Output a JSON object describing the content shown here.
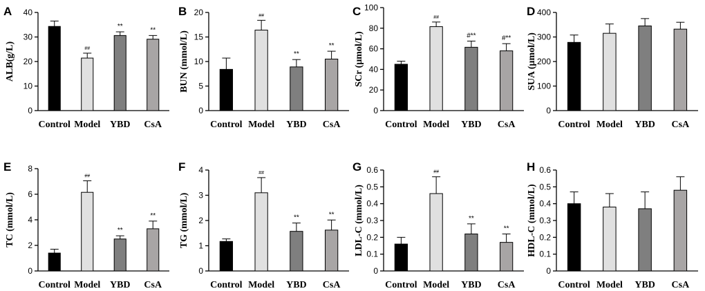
{
  "colors": [
    "#000000",
    "#e0e0e0",
    "#7f7f7f",
    "#a8a5a5"
  ],
  "chart_data": [
    {
      "type": "bar",
      "letter": "A",
      "ylabel": "ALB(g/L)",
      "categories": [
        "Control",
        "Model",
        "YBD",
        "CsA"
      ],
      "ylim": [
        0,
        40
      ],
      "ticks": [
        0,
        10,
        20,
        30,
        40
      ],
      "values": [
        34.3,
        21.4,
        30.6,
        29.1
      ],
      "errors": [
        2.2,
        2.0,
        1.5,
        1.5
      ],
      "annotations": [
        "",
        "##",
        "**",
        "**"
      ]
    },
    {
      "type": "bar",
      "letter": "B",
      "ylabel": "BUN (mmol/L)",
      "categories": [
        "Control",
        "Model",
        "YBD",
        "CsA"
      ],
      "ylim": [
        0,
        20
      ],
      "ticks": [
        0,
        5,
        10,
        15,
        20
      ],
      "values": [
        8.4,
        16.4,
        8.9,
        10.5
      ],
      "errors": [
        2.3,
        2.0,
        1.5,
        1.6
      ],
      "annotations": [
        "",
        "##",
        "**",
        "**"
      ]
    },
    {
      "type": "bar",
      "letter": "C",
      "ylabel": "SCr (μmol/L)",
      "categories": [
        "Control",
        "Model",
        "YBD",
        "CsA"
      ],
      "ylim": [
        0,
        100
      ],
      "ticks": [
        0,
        20,
        40,
        60,
        80,
        100
      ],
      "values": [
        45.0,
        81.5,
        61.5,
        58.0
      ],
      "errors": [
        3.0,
        4.5,
        6.0,
        7.0
      ],
      "annotations": [
        "",
        "##",
        "#**",
        "#**"
      ]
    },
    {
      "type": "bar",
      "letter": "D",
      "ylabel": "SUA (μmol/L)",
      "categories": [
        "Control",
        "Model",
        "YBD",
        "CsA"
      ],
      "ylim": [
        0,
        400
      ],
      "ticks": [
        0,
        100,
        200,
        300,
        400
      ],
      "values": [
        278,
        315,
        345,
        332
      ],
      "errors": [
        30,
        38,
        30,
        28
      ],
      "annotations": [
        "",
        "",
        "",
        ""
      ]
    },
    {
      "type": "bar",
      "letter": "E",
      "ylabel": "TC (mmol/L)",
      "categories": [
        "Control",
        "Model",
        "YBD",
        "CsA"
      ],
      "ylim": [
        0,
        8
      ],
      "ticks": [
        0,
        2,
        4,
        6,
        8
      ],
      "values": [
        1.4,
        6.15,
        2.5,
        3.3
      ],
      "errors": [
        0.3,
        0.9,
        0.25,
        0.6
      ],
      "annotations": [
        "",
        "##",
        "**",
        "**"
      ]
    },
    {
      "type": "bar",
      "letter": "F",
      "ylabel": "TG (mmol/L)",
      "categories": [
        "Control",
        "Model",
        "YBD",
        "CsA"
      ],
      "ylim": [
        0,
        4
      ],
      "ticks": [
        0,
        1,
        2,
        3,
        4
      ],
      "values": [
        1.17,
        3.1,
        1.57,
        1.62
      ],
      "errors": [
        0.1,
        0.6,
        0.33,
        0.4
      ],
      "annotations": [
        "",
        "##",
        "**",
        "**"
      ]
    },
    {
      "type": "bar",
      "letter": "G",
      "ylabel": "LDL-C (mmol/L)",
      "categories": [
        "Control",
        "Model",
        "YBD",
        "CsA"
      ],
      "ylim": [
        0,
        0.6
      ],
      "ticks": [
        "0",
        "0.1",
        "0.2",
        "0.3",
        "0.4",
        "0.5",
        "0.6"
      ],
      "values": [
        0.16,
        0.46,
        0.22,
        0.17
      ],
      "errors": [
        0.04,
        0.1,
        0.06,
        0.05
      ],
      "annotations": [
        "",
        "##",
        "**",
        "**"
      ]
    },
    {
      "type": "bar",
      "letter": "H",
      "ylabel": "HDL-C (mmol/L)",
      "categories": [
        "Control",
        "Model",
        "YBD",
        "CsA"
      ],
      "ylim": [
        0,
        0.6
      ],
      "ticks": [
        "0",
        "0.1",
        "0.2",
        "0.3",
        "0.4",
        "0.5",
        "0.6"
      ],
      "values": [
        0.4,
        0.38,
        0.37,
        0.48
      ],
      "errors": [
        0.07,
        0.08,
        0.1,
        0.08
      ],
      "annotations": [
        "",
        "",
        "",
        ""
      ]
    }
  ]
}
